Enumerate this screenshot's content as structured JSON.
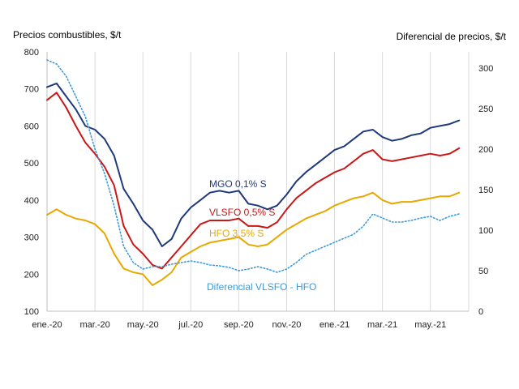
{
  "chart_data": {
    "type": "line",
    "y_left_label": "Precios combustibles, $/t",
    "y_right_label": "Diferencial de precios, $/t",
    "ylim_left": [
      100,
      800
    ],
    "ylim_right": [
      0,
      320
    ],
    "y_left_ticks": [
      "100",
      "200",
      "300",
      "400",
      "500",
      "600",
      "700",
      "800"
    ],
    "y_right_ticks": [
      "0",
      "50",
      "100",
      "150",
      "200",
      "250",
      "300"
    ],
    "x_ticks": [
      "ene.-20",
      "mar.-20",
      "may.-20",
      "jul.-20",
      "sep.-20",
      "nov.-20",
      "ene.-21",
      "mar.-21",
      "may.-21"
    ],
    "grid": "vertical",
    "x_months": [
      0,
      0.4,
      0.8,
      1.2,
      1.6,
      2.0,
      2.4,
      2.8,
      3.2,
      3.6,
      4.0,
      4.4,
      4.8,
      5.2,
      5.6,
      6.0,
      6.4,
      6.8,
      7.2,
      7.6,
      8.0,
      8.4,
      8.8,
      9.2,
      9.6,
      10.0,
      10.4,
      10.8,
      11.2,
      11.6,
      12.0,
      12.4,
      12.8,
      13.2,
      13.6,
      14.0,
      14.4,
      14.8,
      15.2,
      15.6,
      16.0,
      16.4,
      16.8,
      17.2
    ],
    "series": [
      {
        "name": "MGO 0,1% S",
        "axis": "left",
        "color": "#1f3a7a",
        "style": "solid",
        "values": [
          705,
          715,
          680,
          645,
          600,
          590,
          565,
          520,
          430,
          390,
          345,
          320,
          275,
          295,
          350,
          380,
          400,
          420,
          425,
          420,
          425,
          390,
          385,
          375,
          385,
          415,
          450,
          475,
          495,
          515,
          535,
          545,
          565,
          585,
          590,
          570,
          560,
          565,
          575,
          580,
          595,
          600,
          605,
          615
        ]
      },
      {
        "name": "VLSFO 0,5% S",
        "axis": "left",
        "color": "#c81818",
        "style": "solid",
        "values": [
          670,
          690,
          650,
          600,
          555,
          525,
          490,
          440,
          330,
          280,
          255,
          225,
          215,
          245,
          275,
          305,
          335,
          345,
          345,
          345,
          350,
          330,
          330,
          325,
          340,
          375,
          405,
          425,
          445,
          460,
          475,
          485,
          505,
          525,
          535,
          510,
          505,
          510,
          515,
          520,
          525,
          520,
          525,
          540
        ]
      },
      {
        "name": "HFO 3,5% S",
        "axis": "left",
        "color": "#e8a800",
        "style": "solid",
        "values": [
          360,
          375,
          360,
          350,
          345,
          335,
          310,
          255,
          215,
          205,
          200,
          170,
          185,
          205,
          245,
          260,
          275,
          285,
          290,
          295,
          300,
          280,
          275,
          280,
          300,
          320,
          335,
          350,
          360,
          370,
          385,
          395,
          405,
          410,
          420,
          400,
          390,
          395,
          395,
          400,
          405,
          410,
          410,
          420
        ]
      },
      {
        "name": "Diferencial VLSFO - HFO",
        "axis": "right",
        "color": "#3d9bd9",
        "style": "dotted",
        "values": [
          310,
          305,
          290,
          265,
          240,
          200,
          170,
          130,
          80,
          60,
          52,
          55,
          55,
          58,
          60,
          62,
          60,
          57,
          56,
          54,
          50,
          52,
          55,
          52,
          48,
          52,
          60,
          70,
          75,
          80,
          85,
          90,
          95,
          105,
          120,
          115,
          110,
          110,
          112,
          115,
          117,
          112,
          117,
          120
        ]
      }
    ]
  }
}
